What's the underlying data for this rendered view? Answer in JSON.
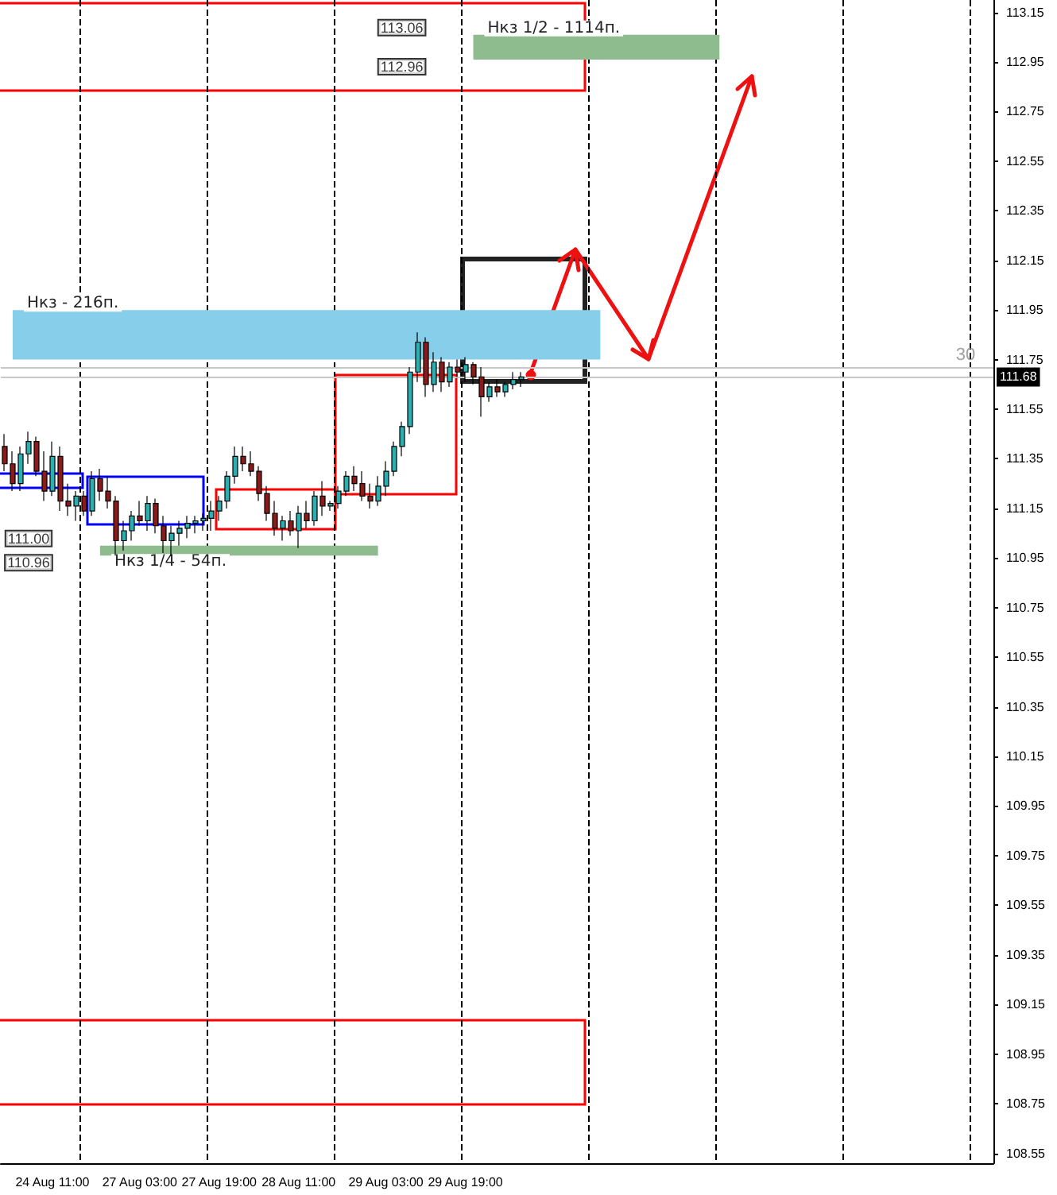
{
  "chart_data": {
    "type": "candlestick",
    "categories": [
      null,
      null,
      null,
      null,
      null,
      null,
      "24 Aug 11:00",
      null,
      null,
      null,
      null,
      null,
      null,
      null,
      null,
      null,
      null,
      "27 Aug 03:00",
      null,
      null,
      null,
      null,
      null,
      null,
      null,
      null,
      null,
      "27 Aug 19:00",
      null,
      null,
      null,
      null,
      null,
      null,
      null,
      null,
      null,
      "28 Aug 11:00",
      null,
      null,
      null,
      null,
      null,
      null,
      null,
      null,
      null,
      null,
      "29 Aug 03:00",
      null,
      null,
      null,
      null,
      null,
      null,
      null,
      null,
      null,
      "29 Aug 19:00",
      null,
      null,
      null,
      null,
      null,
      null,
      null,
      null,
      null,
      null,
      null,
      null,
      null,
      null,
      null,
      null,
      null,
      null,
      null,
      null,
      null,
      null,
      null,
      null,
      null,
      null,
      null,
      null,
      null,
      null,
      null,
      null,
      null,
      null,
      null,
      null,
      null,
      null,
      null,
      null,
      null,
      null,
      null,
      null,
      null,
      null,
      null,
      null,
      null,
      null,
      null,
      null,
      null,
      null,
      null,
      null,
      null,
      null,
      null,
      null,
      null,
      null,
      null,
      null,
      null,
      null
    ],
    "ohlc": [
      [
        111.4,
        111.45,
        111.3,
        111.33
      ],
      [
        111.33,
        111.38,
        111.22,
        111.25
      ],
      [
        111.25,
        111.4,
        111.22,
        111.37
      ],
      [
        111.37,
        111.46,
        111.33,
        111.42
      ],
      [
        111.42,
        111.44,
        111.28,
        111.3
      ],
      [
        111.3,
        111.38,
        111.18,
        111.22
      ],
      [
        111.22,
        111.42,
        111.2,
        111.36
      ],
      [
        111.36,
        111.4,
        111.14,
        111.18
      ],
      [
        111.18,
        111.25,
        111.12,
        111.16
      ],
      [
        111.16,
        111.22,
        111.1,
        111.2
      ],
      [
        111.2,
        111.22,
        111.12,
        111.14
      ],
      [
        111.14,
        111.3,
        111.12,
        111.27
      ],
      [
        111.27,
        111.31,
        111.18,
        111.22
      ],
      [
        111.22,
        111.28,
        111.15,
        111.18
      ],
      [
        111.18,
        111.2,
        110.96,
        111.02
      ],
      [
        111.02,
        111.1,
        110.98,
        111.06
      ],
      [
        111.06,
        111.14,
        111.02,
        111.12
      ],
      [
        111.12,
        111.18,
        111.08,
        111.1
      ],
      [
        111.1,
        111.2,
        111.06,
        111.17
      ],
      [
        111.17,
        111.19,
        111.05,
        111.08
      ],
      [
        111.08,
        111.12,
        110.97,
        111.02
      ],
      [
        111.02,
        111.08,
        110.96,
        111.05
      ],
      [
        111.05,
        111.1,
        111.0,
        111.07
      ],
      [
        111.07,
        111.12,
        111.03,
        111.09
      ],
      [
        111.09,
        111.12,
        111.05,
        111.1
      ],
      [
        111.1,
        111.13,
        111.06,
        111.11
      ],
      [
        111.11,
        111.18,
        111.06,
        111.14
      ],
      [
        111.14,
        111.2,
        111.1,
        111.18
      ],
      [
        111.18,
        111.3,
        111.15,
        111.28
      ],
      [
        111.28,
        111.4,
        111.25,
        111.36
      ],
      [
        111.36,
        111.4,
        111.3,
        111.33
      ],
      [
        111.33,
        111.38,
        111.28,
        111.3
      ],
      [
        111.3,
        111.32,
        111.18,
        111.21
      ],
      [
        111.21,
        111.24,
        111.1,
        111.13
      ],
      [
        111.13,
        111.18,
        111.04,
        111.07
      ],
      [
        111.07,
        111.12,
        111.02,
        111.1
      ],
      [
        111.1,
        111.14,
        111.04,
        111.06
      ],
      [
        111.06,
        111.16,
        110.99,
        111.13
      ],
      [
        111.13,
        111.18,
        111.07,
        111.1
      ],
      [
        111.1,
        111.22,
        111.08,
        111.2
      ],
      [
        111.2,
        111.26,
        111.12,
        111.16
      ],
      [
        111.16,
        111.18,
        111.14,
        111.17
      ],
      [
        111.17,
        111.24,
        111.15,
        111.22
      ],
      [
        111.22,
        111.3,
        111.2,
        111.28
      ],
      [
        111.28,
        111.32,
        111.22,
        111.25
      ],
      [
        111.25,
        111.3,
        111.18,
        111.2
      ],
      [
        111.2,
        111.25,
        111.15,
        111.18
      ],
      [
        111.18,
        111.28,
        111.16,
        111.24
      ],
      [
        111.24,
        111.34,
        111.2,
        111.3
      ],
      [
        111.3,
        111.42,
        111.28,
        111.4
      ],
      [
        111.4,
        111.5,
        111.36,
        111.48
      ],
      [
        111.48,
        111.72,
        111.45,
        111.7
      ],
      [
        111.7,
        111.86,
        111.66,
        111.82
      ],
      [
        111.82,
        111.84,
        111.6,
        111.65
      ],
      [
        111.65,
        111.78,
        111.62,
        111.74
      ],
      [
        111.74,
        111.76,
        111.62,
        111.66
      ],
      [
        111.66,
        111.74,
        111.64,
        111.72
      ],
      [
        111.72,
        111.75,
        111.68,
        111.7
      ],
      [
        111.7,
        111.76,
        111.66,
        111.73
      ],
      [
        111.73,
        111.74,
        111.65,
        111.68
      ],
      [
        111.68,
        111.72,
        111.52,
        111.6
      ],
      [
        111.6,
        111.66,
        111.58,
        111.64
      ],
      [
        111.64,
        111.67,
        111.6,
        111.62
      ],
      [
        111.62,
        111.66,
        111.6,
        111.65
      ],
      [
        111.65,
        111.7,
        111.63,
        111.67
      ],
      [
        111.67,
        111.7,
        111.64,
        111.68
      ],
      null,
      null,
      null,
      null,
      null,
      null,
      null,
      null,
      null,
      null,
      null,
      null,
      null,
      null,
      null,
      null,
      null,
      null,
      null,
      null,
      null,
      null,
      null,
      null,
      null,
      null,
      null,
      null,
      null,
      null,
      null,
      null,
      null,
      null,
      null,
      null,
      null,
      null,
      null,
      null,
      null,
      null,
      null,
      null,
      null,
      null,
      null,
      null,
      null,
      null,
      null,
      null,
      null,
      null,
      null,
      null,
      null,
      null,
      null
    ],
    "colors": [
      "#8b1a1a",
      "#8b1a1a",
      "#2ab0b0",
      "#2ab0b0",
      "#8b1a1a",
      "#8b1a1a",
      "#2ab0b0",
      "#8b1a1a",
      "#8b1a1a",
      "#2ab0b0",
      "#8b1a1a",
      "#2ab0b0",
      "#8b1a1a",
      "#8b1a1a",
      "#8b1a1a",
      "#2ab0b0",
      "#2ab0b0",
      "#8b1a1a",
      "#2ab0b0",
      "#8b1a1a",
      "#8b1a1a",
      "#2ab0b0",
      "#2ab0b0",
      "#2ab0b0",
      "#2ab0b0",
      "#2ab0b0",
      "#2ab0b0",
      "#2ab0b0",
      "#2ab0b0",
      "#2ab0b0",
      "#8b1a1a",
      "#8b1a1a",
      "#8b1a1a",
      "#8b1a1a",
      "#8b1a1a",
      "#2ab0b0",
      "#8b1a1a",
      "#2ab0b0",
      "#8b1a1a",
      "#2ab0b0",
      "#8b1a1a",
      "#2ab0b0",
      "#2ab0b0",
      "#2ab0b0",
      "#8b1a1a",
      "#8b1a1a",
      "#8b1a1a",
      "#2ab0b0",
      "#2ab0b0",
      "#2ab0b0",
      "#2ab0b0",
      "#2ab0b0",
      "#2ab0b0",
      "#8b1a1a",
      "#2ab0b0",
      "#8b1a1a",
      "#2ab0b0",
      "#8b1a1a",
      "#2ab0b0",
      "#8b1a1a",
      "#8b1a1a",
      "#2ab0b0",
      "#8b1a1a",
      "#2ab0b0",
      "#2ab0b0",
      "#2ab0b0",
      null,
      null,
      null,
      null,
      null,
      null,
      null,
      null,
      null,
      null,
      null,
      null,
      null,
      null,
      null,
      null,
      null,
      null,
      null,
      null,
      null,
      null,
      null,
      null,
      null,
      null,
      null,
      null,
      null,
      null,
      null,
      null,
      null,
      null,
      null,
      null,
      null,
      null,
      null,
      null,
      null,
      null,
      null,
      null,
      null,
      null,
      null,
      null,
      null,
      null,
      null,
      null,
      null,
      null,
      null,
      null,
      null,
      null,
      null
    ],
    "ylim": [
      108.51,
      113.2
    ],
    "yticks": [
      108.55,
      108.75,
      108.95,
      109.15,
      109.35,
      109.55,
      109.75,
      109.95,
      110.15,
      110.35,
      110.55,
      110.75,
      110.95,
      111.15,
      111.35,
      111.55,
      111.75,
      111.95,
      112.15,
      112.35,
      112.55,
      112.75,
      112.95,
      113.15
    ],
    "grid": "x",
    "bands": [
      {
        "axis": "y",
        "from": 111.75,
        "to": 111.95,
        "label": "Нкз - 216п.",
        "color": "#87ceeb"
      },
      {
        "axis": "y",
        "from": 112.96,
        "to": 113.06,
        "label": "Нкз 1/2 - 1114п.",
        "color": "#8fbc8f"
      },
      {
        "axis": "y",
        "from": 110.96,
        "to": 111.0,
        "label": "Нкз 1/4 - 54п.",
        "color": "#8fbc8f"
      }
    ],
    "ref_lines": [
      {
        "axis": "y",
        "value": 111.72,
        "color": "#c8c8c8"
      },
      {
        "axis": "y",
        "value": 111.68,
        "label": "111.68",
        "color": "#c8c8c8"
      }
    ],
    "annotations": [
      "113.06",
      "112.96",
      "111.00",
      "110.96",
      "30"
    ]
  }
}
